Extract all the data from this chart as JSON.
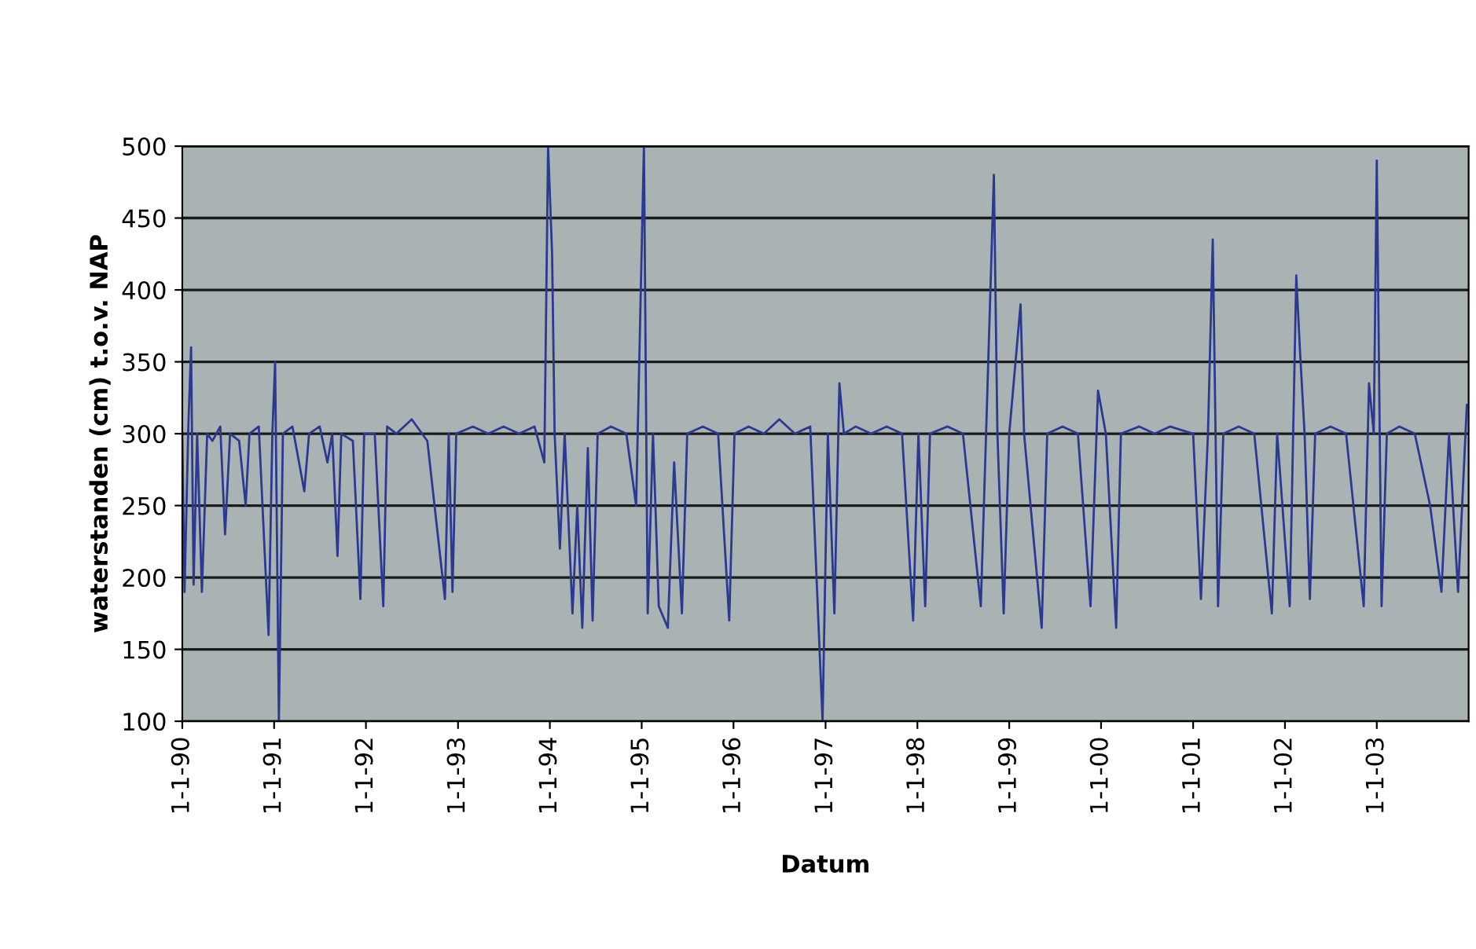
{
  "chart_data": {
    "type": "line",
    "xlabel": "Datum",
    "ylabel": "waterstanden (cm) t.o.v. NAP",
    "xlim": [
      "1990-01-01",
      "2004-01-01"
    ],
    "ylim": [
      100,
      500
    ],
    "yticks": [
      100,
      150,
      200,
      250,
      300,
      350,
      400,
      450,
      500
    ],
    "xticks": [
      {
        "value": "1990-01-01",
        "label": "1-1-90"
      },
      {
        "value": "1991-01-01",
        "label": "1-1-91"
      },
      {
        "value": "1992-01-01",
        "label": "1-1-92"
      },
      {
        "value": "1993-01-01",
        "label": "1-1-93"
      },
      {
        "value": "1994-01-01",
        "label": "1-1-94"
      },
      {
        "value": "1995-01-01",
        "label": "1-1-95"
      },
      {
        "value": "1996-01-01",
        "label": "1-1-96"
      },
      {
        "value": "1997-01-01",
        "label": "1-1-97"
      },
      {
        "value": "1998-01-01",
        "label": "1-1-98"
      },
      {
        "value": "1999-01-01",
        "label": "1-1-99"
      },
      {
        "value": "2000-01-01",
        "label": "1-1-00"
      },
      {
        "value": "2001-01-01",
        "label": "1-1-01"
      },
      {
        "value": "2002-01-01",
        "label": "1-1-02"
      },
      {
        "value": "2003-01-01",
        "label": "1-1-03"
      }
    ],
    "grid": "y",
    "legend": false,
    "marker": "none",
    "line_style": "solid",
    "series": [
      {
        "color": "#2b3990",
        "x": [
          "1990-01-01",
          "1990-01-10",
          "1990-01-25",
          "1990-02-05",
          "1990-02-15",
          "1990-03-01",
          "1990-03-20",
          "1990-04-10",
          "1990-05-01",
          "1990-06-01",
          "1990-06-20",
          "1990-07-10",
          "1990-08-15",
          "1990-09-10",
          "1990-09-25",
          "1990-11-01",
          "1990-12-10",
          "1990-12-25",
          "1991-01-05",
          "1991-01-20",
          "1991-02-05",
          "1991-03-15",
          "1991-05-01",
          "1991-05-20",
          "1991-07-01",
          "1991-08-01",
          "1991-08-20",
          "1991-09-10",
          "1991-09-25",
          "1991-11-10",
          "1991-12-10",
          "1991-12-25",
          "1992-02-05",
          "1992-03-10",
          "1992-03-25",
          "1992-05-01",
          "1992-07-01",
          "1992-09-01",
          "1992-11-10",
          "1992-11-25",
          "1992-12-10",
          "1992-12-25",
          "1993-03-01",
          "1993-05-01",
          "1993-07-01",
          "1993-09-01",
          "1993-11-01",
          "1993-12-10",
          "1993-12-25",
          "1994-01-10",
          "1994-01-20",
          "1994-02-10",
          "1994-03-01",
          "1994-04-01",
          "1994-04-20",
          "1994-05-10",
          "1994-06-01",
          "1994-06-20",
          "1994-07-10",
          "1994-09-01",
          "1994-11-01",
          "1994-12-10",
          "1995-01-10",
          "1995-01-25",
          "1995-02-15",
          "1995-03-10",
          "1995-04-15",
          "1995-05-10",
          "1995-06-10",
          "1995-07-01",
          "1995-09-01",
          "1995-11-01",
          "1995-12-15",
          "1996-01-05",
          "1996-03-01",
          "1996-05-01",
          "1996-07-01",
          "1996-09-01",
          "1996-11-01",
          "1996-12-20",
          "1997-01-10",
          "1997-02-05",
          "1997-02-25",
          "1997-03-15",
          "1997-05-01",
          "1997-07-01",
          "1997-09-01",
          "1997-11-01",
          "1997-12-15",
          "1998-01-05",
          "1998-02-01",
          "1998-02-20",
          "1998-05-01",
          "1998-07-01",
          "1998-09-10",
          "1998-10-01",
          "1998-11-01",
          "1998-11-15",
          "1998-12-10",
          "1999-01-01",
          "1999-02-15",
          "1999-03-01",
          "1999-04-01",
          "1999-05-10",
          "1999-06-01",
          "1999-08-01",
          "1999-10-01",
          "1999-11-20",
          "1999-12-20",
          "2000-01-20",
          "2000-03-01",
          "2000-03-20",
          "2000-06-01",
          "2000-08-01",
          "2000-10-01",
          "2001-01-01",
          "2001-02-01",
          "2001-03-01",
          "2001-03-20",
          "2001-04-10",
          "2001-05-01",
          "2001-07-01",
          "2001-09-01",
          "2001-11-10",
          "2001-12-01",
          "2002-01-20",
          "2002-02-15",
          "2002-03-01",
          "2002-03-20",
          "2002-04-10",
          "2002-05-01",
          "2002-07-01",
          "2002-09-01",
          "2002-11-10",
          "2002-12-01",
          "2002-12-20",
          "2003-01-01",
          "2003-01-20",
          "2003-02-10",
          "2003-04-01",
          "2003-06-01",
          "2003-08-01",
          "2003-09-15",
          "2003-10-15",
          "2003-11-20",
          "2003-12-25"
        ],
        "values": [
          300,
          190,
          305,
          360,
          195,
          300,
          190,
          300,
          295,
          305,
          230,
          300,
          295,
          250,
          300,
          305,
          160,
          300,
          350,
          100,
          300,
          305,
          260,
          300,
          305,
          280,
          300,
          215,
          300,
          295,
          185,
          300,
          300,
          180,
          305,
          300,
          310,
          295,
          185,
          300,
          190,
          300,
          305,
          300,
          305,
          300,
          305,
          280,
          500,
          425,
          300,
          220,
          300,
          175,
          250,
          165,
          290,
          170,
          300,
          305,
          300,
          250,
          500,
          175,
          300,
          180,
          165,
          280,
          175,
          300,
          305,
          300,
          170,
          300,
          305,
          300,
          310,
          300,
          305,
          100,
          300,
          175,
          335,
          300,
          305,
          300,
          305,
          300,
          170,
          300,
          180,
          300,
          305,
          300,
          180,
          300,
          480,
          300,
          175,
          300,
          390,
          300,
          240,
          165,
          300,
          305,
          300,
          180,
          330,
          300,
          165,
          300,
          305,
          300,
          305,
          300,
          185,
          300,
          435,
          180,
          300,
          305,
          300,
          175,
          300,
          180,
          410,
          360,
          300,
          185,
          300,
          305,
          300,
          180,
          335,
          300,
          490,
          180,
          300,
          305,
          300,
          250,
          190,
          300,
          190,
          320
        ]
      }
    ]
  }
}
